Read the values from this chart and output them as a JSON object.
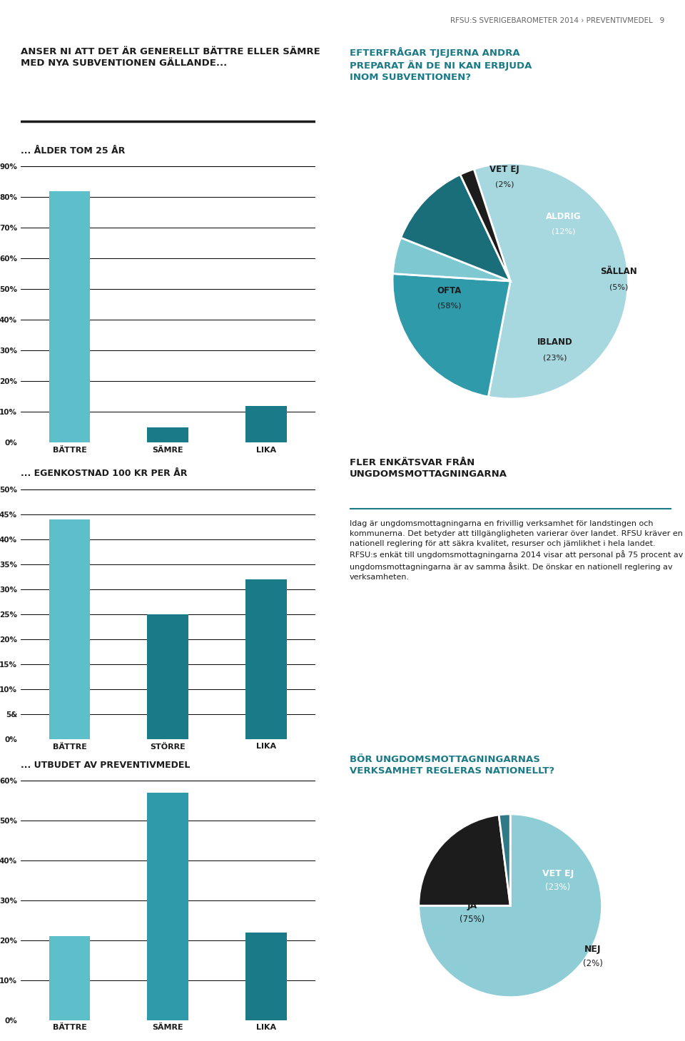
{
  "page_header_left": "RFSU:S SVERIGEBAROMETER 2014 › ",
  "page_header_right": "PREVENTIVMEDEL   9",
  "bg_color": "#ffffff",
  "teal_light": "#5cbfc9",
  "teal_dark": "#1a7a87",
  "teal_medium": "#2e9aaa",
  "teal_pale": "#a8d8df",
  "black": "#1c1c1c",
  "gray_text": "#333333",
  "main_title_left": "ANSER NI ATT DET ÄR GENERELLT BÄTTRE ELLER SÄMRE\nMED NYA SUBVENTIONEN GÄLLANDE...",
  "bar1": {
    "subtitle": "... ÅLDER TOM 25 ÅR",
    "categories": [
      "BÄTTRE",
      "SÄMRE",
      "LIKA"
    ],
    "values": [
      82,
      5,
      12
    ],
    "colors": [
      "#5cbfc9",
      "#1a7a87",
      "#1a7a87"
    ],
    "ylim": [
      0,
      90
    ],
    "yticks": [
      0,
      10,
      20,
      30,
      40,
      50,
      60,
      70,
      80,
      90
    ]
  },
  "pie1": {
    "title": "EFTERFRÅGAR TJEJERNA ANDRA\nPREPARAT ÄN DE NI KAN ERBJUDA\nINOM SUBVENTIONEN?",
    "label_names": [
      "OFTA",
      "IBLAND",
      "SÄLLAN",
      "ALDRIG",
      "VET EJ"
    ],
    "label_pcts": [
      "(58%)",
      "(23%)",
      "(5%)",
      "(12%)",
      "(2%)"
    ],
    "values": [
      58,
      23,
      5,
      12,
      2
    ],
    "colors": [
      "#a8d8df",
      "#2e9aaa",
      "#7ec8d2",
      "#1a6e7a",
      "#1c1c1c"
    ],
    "startangle": 108
  },
  "bar2": {
    "subtitle": "... EGENKOSTNAD 100 KR PER ÅR",
    "categories": [
      "BÄTTRE",
      "STÖRRE",
      "LIKA"
    ],
    "values": [
      44,
      25,
      32
    ],
    "colors": [
      "#5cbfc9",
      "#1a7a87",
      "#1a7a87"
    ],
    "ylim": [
      0,
      50
    ],
    "yticks": [
      0,
      5,
      10,
      15,
      20,
      25,
      30,
      35,
      40,
      45,
      50
    ],
    "ytick_labels": [
      "0%",
      "5%",
      "10%",
      "15%",
      "20%",
      "25%",
      "30%",
      "35%",
      "40%",
      "45%",
      "50%"
    ],
    "special_label": "5&"
  },
  "bar3": {
    "subtitle": "... UTBUDET AV PREVENTIVMEDEL",
    "categories": [
      "BÄTTRE",
      "SÄMRE",
      "LIKA"
    ],
    "values": [
      21,
      57,
      22
    ],
    "colors": [
      "#5cbfc9",
      "#2e9aaa",
      "#1a7a87"
    ],
    "ylim": [
      0,
      60
    ],
    "yticks": [
      0,
      10,
      20,
      30,
      40,
      50,
      60
    ]
  },
  "right_text_title": "FLER ENKÄTSVAR FRÅN\nUNGDOMSMOTTAGNINGARNA",
  "right_text_body": "Idag är ungdomsmottagningarna en frivillig verksamhet för landstingen och kommunerna. Det betyder att tillgängligheten varierar över landet. RFSU kräver en nationell reglering för att säkra kvalitet, resurser och jämlikhet i hela landet. RFSU:s enkät till ungdomsmottagningarna 2014 visar att personal på 75 procent av ungdomsmottagningarna är av samma åsikt. De önskar en nationell reglering av verksamheten.",
  "pie2": {
    "title": "BÖR UNGDOMSMOTTAGNINGARNAS\nVERKSAMHET REGLERAS NATIONELLT?",
    "label_names": [
      "JA",
      "VET EJ",
      "NEJ"
    ],
    "label_pcts": [
      "(75%)",
      "(23%)",
      "(2%)"
    ],
    "values": [
      75,
      23,
      2
    ],
    "colors": [
      "#8fcdd6",
      "#1c1c1c",
      "#2e7a87"
    ],
    "startangle": 90
  }
}
